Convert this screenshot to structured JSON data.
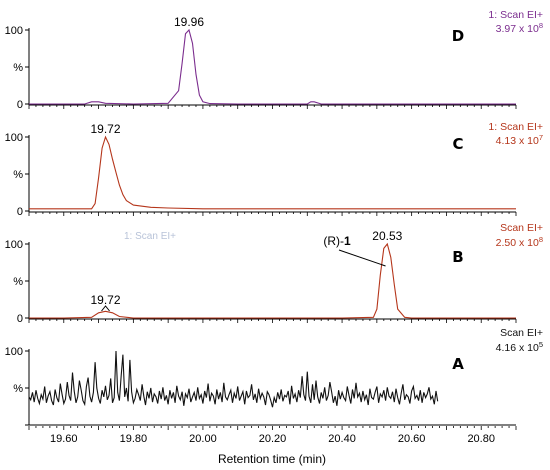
{
  "chart_data": {
    "type": "line",
    "xlabel": "Retention time (min)",
    "xlim": [
      19.5,
      20.9
    ],
    "x_ticks": [
      "19.60",
      "19.80",
      "20.00",
      "20.20",
      "20.40",
      "20.60",
      "20.80"
    ],
    "y_ticks": [
      "0",
      "%",
      "100"
    ],
    "panels": [
      {
        "letter": "D",
        "color": "#7b2d8e",
        "info_line1": "1: Scan EI+",
        "info_line2": "3.97 x 10",
        "info_exp": "8",
        "peak_labels": [
          {
            "text": "19.96",
            "x": 19.96
          }
        ],
        "series": {
          "x": [
            19.5,
            19.6,
            19.66,
            19.68,
            19.7,
            19.72,
            19.8,
            19.9,
            19.93,
            19.94,
            19.95,
            19.96,
            19.97,
            19.98,
            19.99,
            20.0,
            20.02,
            20.1,
            20.2,
            20.3,
            20.31,
            20.32,
            20.34,
            20.4,
            20.5,
            20.6,
            20.7,
            20.8,
            20.9
          ],
          "y": [
            0,
            0,
            0,
            3,
            3,
            1,
            0,
            1,
            18,
            55,
            95,
            100,
            82,
            40,
            12,
            3,
            0.5,
            0,
            0,
            0,
            3,
            3,
            0,
            0,
            0,
            0,
            0,
            0,
            0
          ]
        }
      },
      {
        "letter": "C",
        "color": "#b5361b",
        "info_line1": "1: Scan EI+",
        "info_line2": "4.13 x 10",
        "info_exp": "7",
        "peak_labels": [
          {
            "text": "19.72",
            "x": 19.72
          }
        ],
        "series": {
          "x": [
            19.5,
            19.6,
            19.68,
            19.69,
            19.7,
            19.71,
            19.72,
            19.73,
            19.74,
            19.75,
            19.76,
            19.77,
            19.78,
            19.8,
            19.85,
            19.9,
            20.0,
            20.2,
            20.4,
            20.6,
            20.8,
            20.9
          ],
          "y": [
            3,
            3,
            3,
            10,
            45,
            85,
            100,
            90,
            70,
            52,
            35,
            22,
            14,
            8,
            5,
            4,
            3,
            3,
            3,
            3,
            3,
            3
          ]
        }
      },
      {
        "letter": "B",
        "color": "#b5361b",
        "info_line1": "Scan EI+",
        "info_line2": "2.50 x 10",
        "info_exp": "8",
        "ghost_text": "1: Scan EI+",
        "compound_prefix": "(R)-",
        "compound_bold": "1",
        "peak_labels": [
          {
            "text": "20.53",
            "x": 20.53
          },
          {
            "text": "19.72",
            "x": 19.72
          }
        ],
        "series": {
          "x": [
            19.5,
            19.6,
            19.68,
            19.7,
            19.72,
            19.74,
            19.76,
            19.8,
            20.0,
            20.2,
            20.4,
            20.49,
            20.5,
            20.51,
            20.52,
            20.53,
            20.54,
            20.55,
            20.56,
            20.58,
            20.6,
            20.8,
            20.9
          ],
          "y": [
            0,
            0,
            1,
            7,
            9,
            7,
            2,
            0,
            0,
            0,
            0,
            1,
            12,
            58,
            94,
            100,
            82,
            45,
            12,
            1,
            0,
            0,
            0
          ]
        }
      },
      {
        "letter": "A",
        "color": "#111111",
        "info_line1": "Scan EI+",
        "info_line2": "4.16 x 10",
        "info_exp": "5",
        "series": {
          "x_start": 19.5,
          "x_step": 0.005,
          "y": [
            38,
            34,
            44,
            31,
            47,
            36,
            29,
            41,
            35,
            52,
            30,
            39,
            45,
            33,
            27,
            48,
            37,
            31,
            56,
            42,
            29,
            35,
            58,
            40,
            33,
            71,
            46,
            30,
            38,
            60,
            47,
            33,
            28,
            52,
            64,
            39,
            31,
            44,
            85,
            50,
            36,
            29,
            47,
            38,
            53,
            34,
            40,
            63,
            30,
            37,
            100,
            44,
            33,
            67,
            95,
            38,
            50,
            32,
            88,
            45,
            30,
            36,
            48,
            41,
            33,
            55,
            39,
            27,
            45,
            36,
            50,
            31,
            42,
            38,
            29,
            46,
            35,
            51,
            33,
            40,
            28,
            47,
            36,
            44,
            30,
            53,
            39,
            34,
            45,
            26,
            42,
            37,
            49,
            31,
            38,
            44,
            33,
            51,
            36,
            41,
            29,
            46,
            37,
            56,
            32,
            43,
            39,
            28,
            48,
            35,
            44,
            31,
            57,
            38,
            34,
            41,
            47,
            30,
            43,
            36,
            52,
            33,
            39,
            45,
            28,
            46,
            37,
            40,
            55,
            34,
            42,
            30,
            49,
            36,
            43,
            38,
            27,
            45,
            41,
            33,
            24,
            37,
            30,
            44,
            35,
            48,
            32,
            40,
            38,
            46,
            28,
            53,
            36,
            42,
            31,
            47,
            37,
            66,
            41,
            33,
            72,
            39,
            30,
            55,
            34,
            60,
            38,
            29,
            44,
            36,
            51,
            33,
            40,
            58,
            45,
            30,
            39,
            26,
            47,
            35,
            44,
            37,
            33,
            52,
            40,
            29,
            48,
            36,
            57,
            38,
            43,
            31,
            46,
            34,
            41,
            27,
            49,
            37,
            35,
            44,
            52,
            30,
            42,
            38,
            47,
            33,
            51,
            39,
            36,
            45,
            31,
            49,
            37,
            28,
            43,
            55,
            34,
            41,
            38,
            29,
            46,
            52,
            36,
            40,
            33,
            47,
            30,
            44,
            37,
            42,
            51,
            35,
            39,
            28,
            46,
            32
          ]
        }
      }
    ]
  }
}
